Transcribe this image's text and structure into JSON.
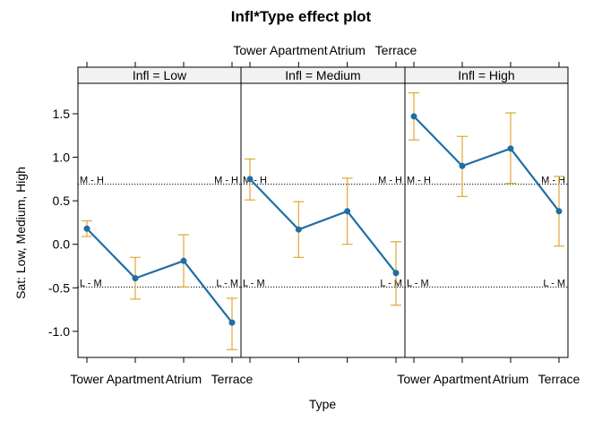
{
  "chart_data": {
    "type": "line",
    "title": "Infl*Type effect plot",
    "xlabel": "Type",
    "ylabel": "Sat: Low, Medium, High",
    "categories": [
      "Tower",
      "Apartment",
      "Atrium",
      "Terrace"
    ],
    "ylim": [
      -1.3,
      1.85
    ],
    "yticks": [
      -1.0,
      -0.5,
      0.0,
      0.5,
      1.0,
      1.5
    ],
    "ytick_labels": [
      "-1.0",
      "-0.5",
      "0.0",
      "0.5",
      "1.0",
      "1.5"
    ],
    "reference_lines": [
      {
        "label": "M - H",
        "y": 0.69
      },
      {
        "label": "L - M",
        "y": -0.49
      }
    ],
    "panels": [
      {
        "strip": "Infl = Low",
        "values": [
          0.18,
          -0.39,
          -0.19,
          -0.9
        ],
        "lower": [
          0.09,
          -0.63,
          -0.49,
          -1.21
        ],
        "upper": [
          0.27,
          -0.15,
          0.11,
          -0.62
        ]
      },
      {
        "strip": "Infl = Medium",
        "values": [
          0.75,
          0.17,
          0.38,
          -0.33
        ],
        "lower": [
          0.51,
          -0.15,
          0.0,
          -0.7
        ],
        "upper": [
          0.98,
          0.49,
          0.76,
          0.03
        ]
      },
      {
        "strip": "Infl = High",
        "values": [
          1.47,
          0.9,
          1.1,
          0.38
        ],
        "lower": [
          1.2,
          0.55,
          0.7,
          -0.02
        ],
        "upper": [
          1.74,
          1.24,
          1.51,
          0.78
        ]
      }
    ],
    "colors": {
      "line": "#1f6fa4",
      "errorbar": "#e1a735",
      "strip_bg": "#f2f2f2",
      "grid": "#000000"
    }
  }
}
